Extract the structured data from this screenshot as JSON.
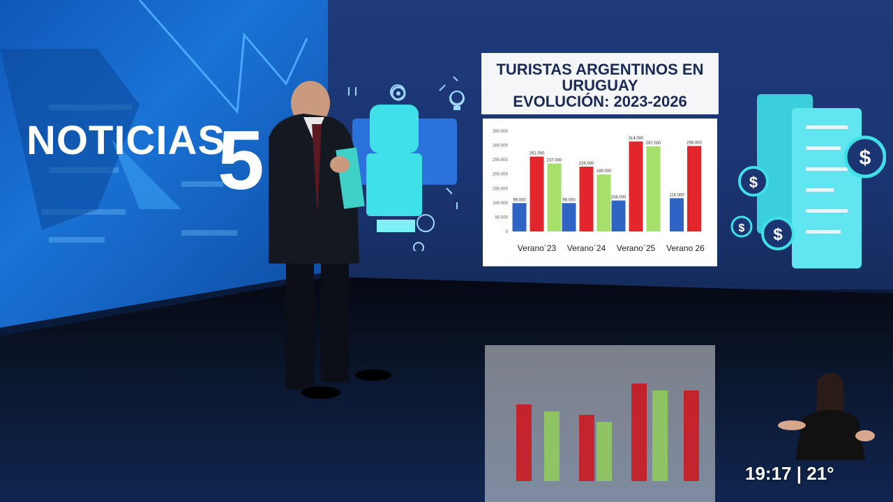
{
  "brand": {
    "name": "NOTICIAS",
    "number": "5"
  },
  "chart_card": {
    "title_line1": "TURISTAS ARGENTINOS EN",
    "title_line2": "URUGUAY",
    "title_line3": "EVOLUCIÓN: 2023-2026"
  },
  "chart_data": {
    "type": "bar",
    "categories": [
      "Verano´23",
      "Verano´24",
      "Verano´25",
      "Verano 26"
    ],
    "ylim": [
      0,
      350000
    ],
    "yticks": [
      "350.000",
      "300.000",
      "250.000",
      "200.000",
      "150.000",
      "100.000",
      "50.000",
      "0"
    ],
    "colors": [
      "#2f63c4",
      "#e3262b",
      "#a6e06a"
    ],
    "series": [
      {
        "color": "#2f63c4",
        "values": [
          99000,
          99000,
          108000,
          116000
        ],
        "labels": [
          "99.000",
          "99.000",
          "108.000",
          "116.000"
        ]
      },
      {
        "color": "#e3262b",
        "values": [
          261000,
          226000,
          314000,
          298000
        ],
        "labels": [
          "261.000",
          "226.000",
          "314.000",
          "298.000"
        ]
      },
      {
        "color": "#a6e06a",
        "values": [
          237000,
          199000,
          297000,
          null
        ],
        "labels": [
          "237.000",
          "199.000",
          "297.000",
          ""
        ]
      }
    ]
  },
  "status": {
    "time": "19:17",
    "separator": "|",
    "temperature": "21°"
  },
  "colors": {
    "wall_blue": "#1a73d6",
    "accent_cyan": "#3fe0e8",
    "chart_title_text": "#1a2a55"
  },
  "icons": [
    "fist-money-icon",
    "lightbulb-icon",
    "gear-icon",
    "dollar-coin-icon",
    "receipt-icon"
  ]
}
